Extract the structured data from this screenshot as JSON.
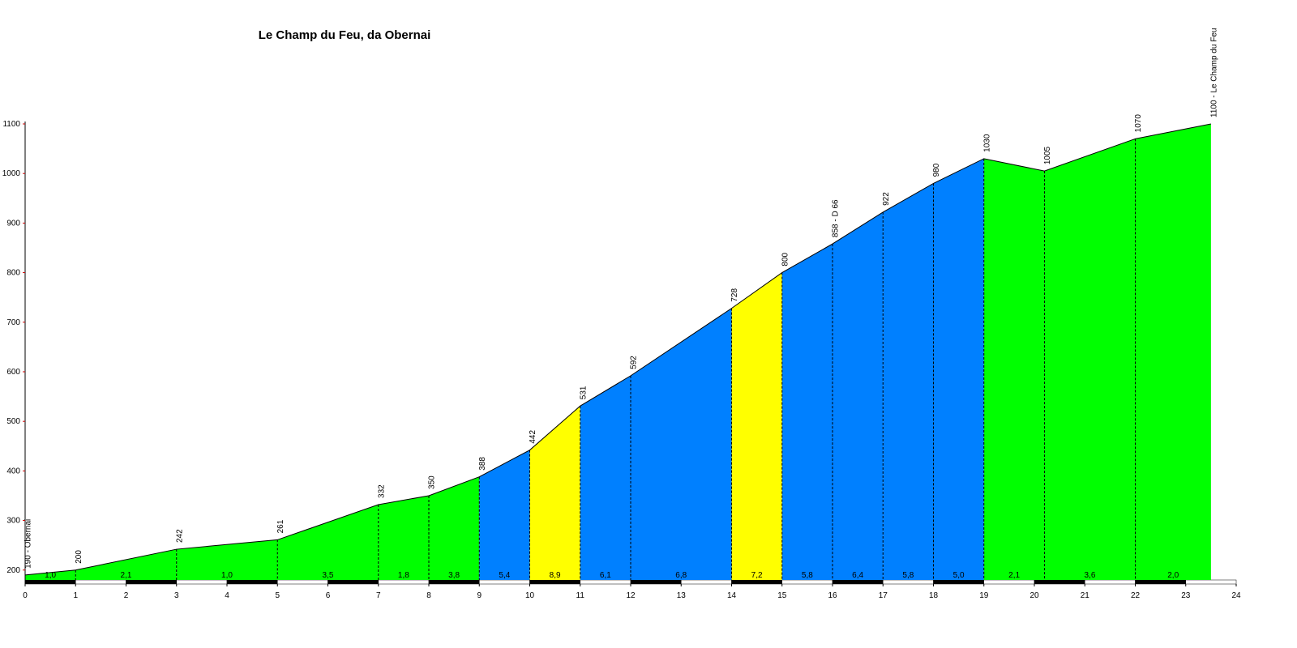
{
  "chart_data": {
    "type": "area",
    "title": "Le Champ du Feu, da Obernai",
    "x": [
      0,
      1,
      3,
      5,
      7,
      8,
      9,
      10,
      11,
      12,
      14,
      15,
      16,
      17,
      18,
      19,
      20.2,
      22,
      23.5
    ],
    "values": [
      190,
      200,
      242,
      261,
      332,
      350,
      388,
      442,
      531,
      592,
      728,
      800,
      858,
      922,
      980,
      1030,
      1005,
      1070,
      1100
    ],
    "value_labels": [
      "190 - Obernai",
      "200",
      "242",
      "261",
      "332",
      "350",
      "388",
      "442",
      "531",
      "592",
      "728",
      "800",
      "858 - D 66",
      "922",
      "980",
      "1030",
      "1005",
      "1070",
      "1100 - Le Champ du Feu"
    ],
    "segments": {
      "grades": [
        1.0,
        2.1,
        1.0,
        3.5,
        1.8,
        3.8,
        5.4,
        8.9,
        6.1,
        6.8,
        7.2,
        5.8,
        6.4,
        5.8,
        5.0,
        2.1,
        3.6,
        2.0
      ],
      "grade_labels": [
        "1,0",
        "2,1",
        "1,0",
        "3,5",
        "1,8",
        "3,8",
        "5,4",
        "8,9",
        "6,1",
        "6,8",
        "7,2",
        "5,8",
        "6,4",
        "5,8",
        "5,0",
        "2,1",
        "3,6",
        "2,0"
      ],
      "colors": [
        "#00ff00",
        "#00ff00",
        "#00ff00",
        "#00ff00",
        "#00ff00",
        "#00ff00",
        "#0080ff",
        "#ffff00",
        "#0080ff",
        "#0080ff",
        "#ffff00",
        "#0080ff",
        "#0080ff",
        "#0080ff",
        "#0080ff",
        "#00ff00",
        "#00ff00",
        "#00ff00"
      ]
    },
    "xlim": [
      0,
      24
    ],
    "ylim": [
      180,
      1100
    ],
    "xticks": [
      0,
      1,
      2,
      3,
      4,
      5,
      6,
      7,
      8,
      9,
      10,
      11,
      12,
      13,
      14,
      15,
      16,
      17,
      18,
      19,
      20,
      21,
      22,
      23,
      24
    ],
    "yticks": [
      200,
      300,
      400,
      500,
      600,
      700,
      800,
      900,
      1000,
      1100
    ]
  }
}
